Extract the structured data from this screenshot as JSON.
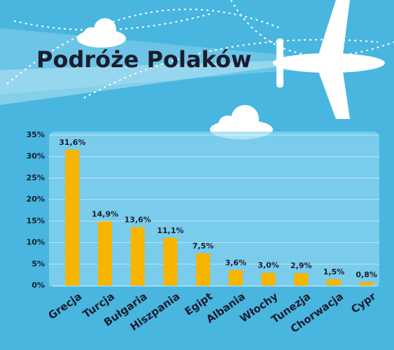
{
  "chart_data": {
    "type": "bar",
    "title": "Podróże Polaków",
    "categories": [
      "Grecja",
      "Turcja",
      "Bułgaria",
      "Hiszpania",
      "Egipt",
      "Albania",
      "Włochy",
      "Tunezja",
      "Chorwacja",
      "Cypr"
    ],
    "values": [
      31.6,
      14.9,
      13.6,
      11.1,
      7.5,
      3.6,
      3.0,
      2.9,
      1.5,
      0.8
    ],
    "value_labels": [
      "31,6%",
      "14,9%",
      "13,6%",
      "11,1%",
      "7,5%",
      "3,6%",
      "3,0%",
      "2,9%",
      "1,5%",
      "0,8%"
    ],
    "color": "#f7b400",
    "ylim": [
      0,
      35
    ],
    "yticks": [
      {
        "value": 0,
        "label": "0%"
      },
      {
        "value": 5,
        "label": "5%"
      },
      {
        "value": 10,
        "label": "10%"
      },
      {
        "value": 15,
        "label": "15%"
      },
      {
        "value": 20,
        "label": "20%"
      },
      {
        "value": 25,
        "label": "25%"
      },
      {
        "value": 30,
        "label": "30%"
      },
      {
        "value": 35,
        "label": "35%"
      }
    ]
  }
}
